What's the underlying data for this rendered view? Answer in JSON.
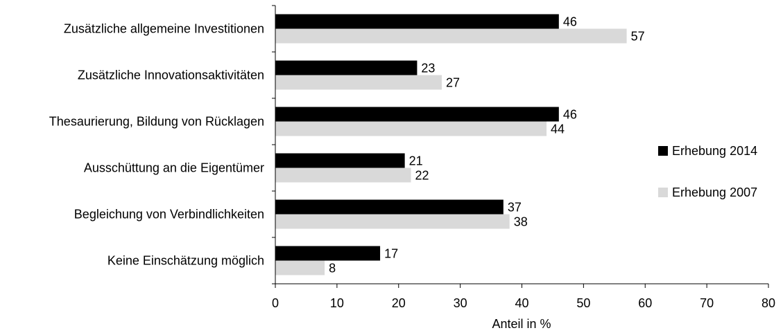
{
  "chart_data": {
    "type": "bar",
    "orientation": "horizontal",
    "title": "",
    "xlabel": "Anteil in %",
    "ylabel": "",
    "xlim": [
      0,
      80
    ],
    "xticks": [
      0,
      10,
      20,
      30,
      40,
      50,
      60,
      70,
      80
    ],
    "grid": false,
    "legend_position": "right",
    "categories": [
      "Zusätzliche allgemeine Investitionen",
      "Zusätzliche Innovationsaktivitäten",
      "Thesaurierung, Bildung von Rücklagen",
      "Ausschüttung an die Eigentümer",
      "Begleichung von Verbindlichkeiten",
      "Keine Einschätzung möglich"
    ],
    "series": [
      {
        "name": "Erhebung 2014",
        "color": "#000000",
        "values": [
          46,
          23,
          46,
          21,
          37,
          17
        ]
      },
      {
        "name": "Erhebung 2007",
        "color": "#d9d9d9",
        "values": [
          57,
          27,
          44,
          22,
          38,
          8
        ]
      }
    ]
  }
}
